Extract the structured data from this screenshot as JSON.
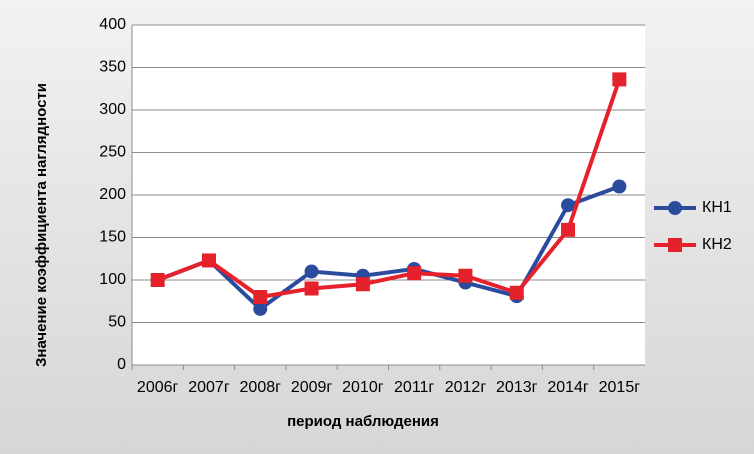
{
  "chart_data": {
    "type": "line",
    "y_label": "Значение коэффициента наглядности",
    "x_label": "период наблюдения",
    "categories": [
      "2006г",
      "2007г",
      "2008г",
      "2009г",
      "2010г",
      "2011г",
      "2012г",
      "2013г",
      "2014г",
      "2015г"
    ],
    "series": [
      {
        "name": "КН1",
        "color": "#2b4b9e",
        "marker": "circle",
        "values": [
          100,
          123,
          66,
          110,
          105,
          113,
          97,
          81,
          188,
          210
        ]
      },
      {
        "name": "КН2",
        "color": "#e5212b",
        "marker": "square",
        "values": [
          100,
          123,
          80,
          90,
          95,
          108,
          105,
          85,
          159,
          336
        ]
      }
    ],
    "ylim": [
      0,
      400
    ],
    "yticks": [
      0,
      50,
      100,
      150,
      200,
      250,
      300,
      350,
      400
    ],
    "grid": true,
    "legend": "right"
  }
}
